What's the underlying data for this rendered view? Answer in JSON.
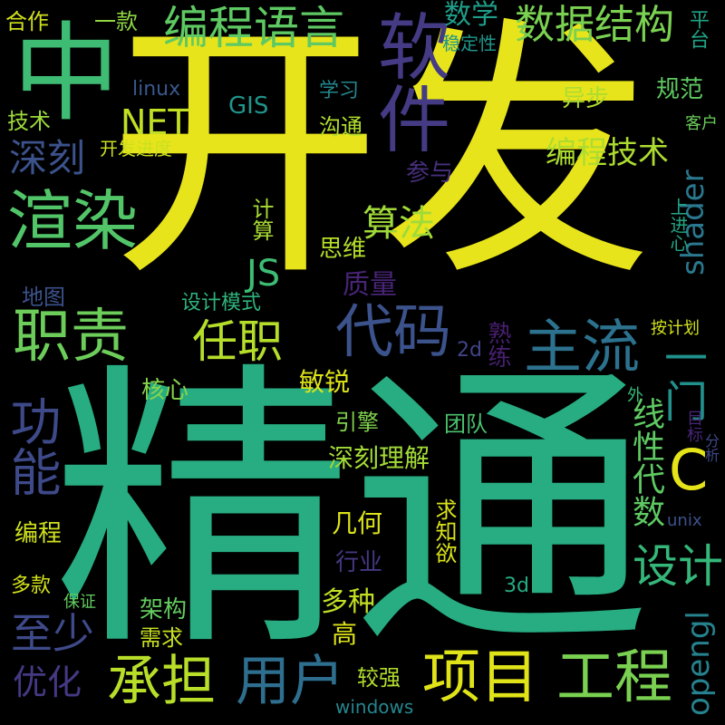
{
  "words": [
    {
      "text": "开发",
      "color": "#e8e41b"
    },
    {
      "text": "精通",
      "color": "#27ad81"
    },
    {
      "text": "中",
      "color": "#3fbc73"
    },
    {
      "text": "软件",
      "color": "#443b84"
    },
    {
      "text": "编程语言",
      "color": "#5ec962"
    },
    {
      "text": "数据结构",
      "color": "#7ad151"
    },
    {
      "text": "渲染",
      "color": "#52c569"
    },
    {
      "text": "职责",
      "color": "#6ccd5a"
    },
    {
      "text": "代码",
      "color": "#3b528b"
    },
    {
      "text": "主流",
      "color": "#2c728e"
    },
    {
      "text": "任职",
      "color": "#b5de2b"
    },
    {
      "text": "功能",
      "color": "#3e4989"
    },
    {
      "text": "NET",
      "color": "#c2df23"
    },
    {
      "text": "JS",
      "color": "#3dbc74"
    },
    {
      "text": "C",
      "color": "#e5e419"
    },
    {
      "text": "一门",
      "color": "#21918c"
    },
    {
      "text": "算法",
      "color": "#a0da39"
    },
    {
      "text": "深刻",
      "color": "#3b528b"
    },
    {
      "text": "编程技术",
      "color": "#addc30"
    },
    {
      "text": "shader",
      "color": "#2a788e"
    },
    {
      "text": "设计",
      "color": "#35b779"
    },
    {
      "text": "承担",
      "color": "#b8de29"
    },
    {
      "text": "用户",
      "color": "#2e6e8e"
    },
    {
      "text": "项目",
      "color": "#dfe318"
    },
    {
      "text": "工程",
      "color": "#7ad151"
    },
    {
      "text": "线性代数",
      "color": "#5ec962"
    },
    {
      "text": "至少",
      "color": "#3e4a89"
    },
    {
      "text": "优化",
      "color": "#443983"
    },
    {
      "text": "opengl",
      "color": "#26828e"
    },
    {
      "text": "深刻理解",
      "color": "#a2da37"
    },
    {
      "text": "数学",
      "color": "#1f9e89"
    },
    {
      "text": "合作",
      "color": "#d0e11c"
    },
    {
      "text": "一款",
      "color": "#90d743"
    },
    {
      "text": "平台",
      "color": "#20a386"
    },
    {
      "text": "稳定性",
      "color": "#1f968b"
    },
    {
      "text": "linux",
      "color": "#38588c"
    },
    {
      "text": "GIS",
      "color": "#1f958b"
    },
    {
      "text": "学习",
      "color": "#24878e"
    },
    {
      "text": "规范",
      "color": "#5ec962"
    },
    {
      "text": "技术",
      "color": "#9dd93b"
    },
    {
      "text": "沟通",
      "color": "#b0dd2f"
    },
    {
      "text": "异步",
      "color": "#addc30"
    },
    {
      "text": "客户",
      "color": "#6ccd5a"
    },
    {
      "text": "开发进度",
      "color": "#cae11f"
    },
    {
      "text": "参与",
      "color": "#472f7d"
    },
    {
      "text": "上进心",
      "color": "#21a585"
    },
    {
      "text": "计算",
      "color": "#a8db34"
    },
    {
      "text": "思维",
      "color": "#b5de2b"
    },
    {
      "text": "地图",
      "color": "#3b528b"
    },
    {
      "text": "质量",
      "color": "#482475"
    },
    {
      "text": "设计模式",
      "color": "#2fb47c"
    },
    {
      "text": "按计划",
      "color": "#d0e11c"
    },
    {
      "text": "2d",
      "color": "#414487"
    },
    {
      "text": "熟练",
      "color": "#481f70"
    },
    {
      "text": "核心",
      "color": "#84d44b"
    },
    {
      "text": "敏锐",
      "color": "#dde318"
    },
    {
      "text": "引擎",
      "color": "#7fd34e"
    },
    {
      "text": "团队",
      "color": "#4ac16d"
    },
    {
      "text": "目标",
      "color": "#482576"
    },
    {
      "text": "分析",
      "color": "#3e4989"
    },
    {
      "text": "外",
      "color": "#35b779"
    },
    {
      "text": "求知欲",
      "color": "#d8e219"
    },
    {
      "text": "几何",
      "color": "#dae319"
    },
    {
      "text": "编程",
      "color": "#d0e11c"
    },
    {
      "text": "行业",
      "color": "#453781"
    },
    {
      "text": "unix",
      "color": "#3b528b"
    },
    {
      "text": "多种",
      "color": "#c2df23"
    },
    {
      "text": "3d",
      "color": "#25ab82"
    },
    {
      "text": "多款",
      "color": "#d5e21a"
    },
    {
      "text": "保证",
      "color": "#63cb5f"
    },
    {
      "text": "架构",
      "color": "#63cb5f"
    },
    {
      "text": "高",
      "color": "#dde318"
    },
    {
      "text": "需求",
      "color": "#c8e020"
    },
    {
      "text": "较强",
      "color": "#b2dd2d"
    },
    {
      "text": "windows",
      "color": "#24868e"
    }
  ]
}
